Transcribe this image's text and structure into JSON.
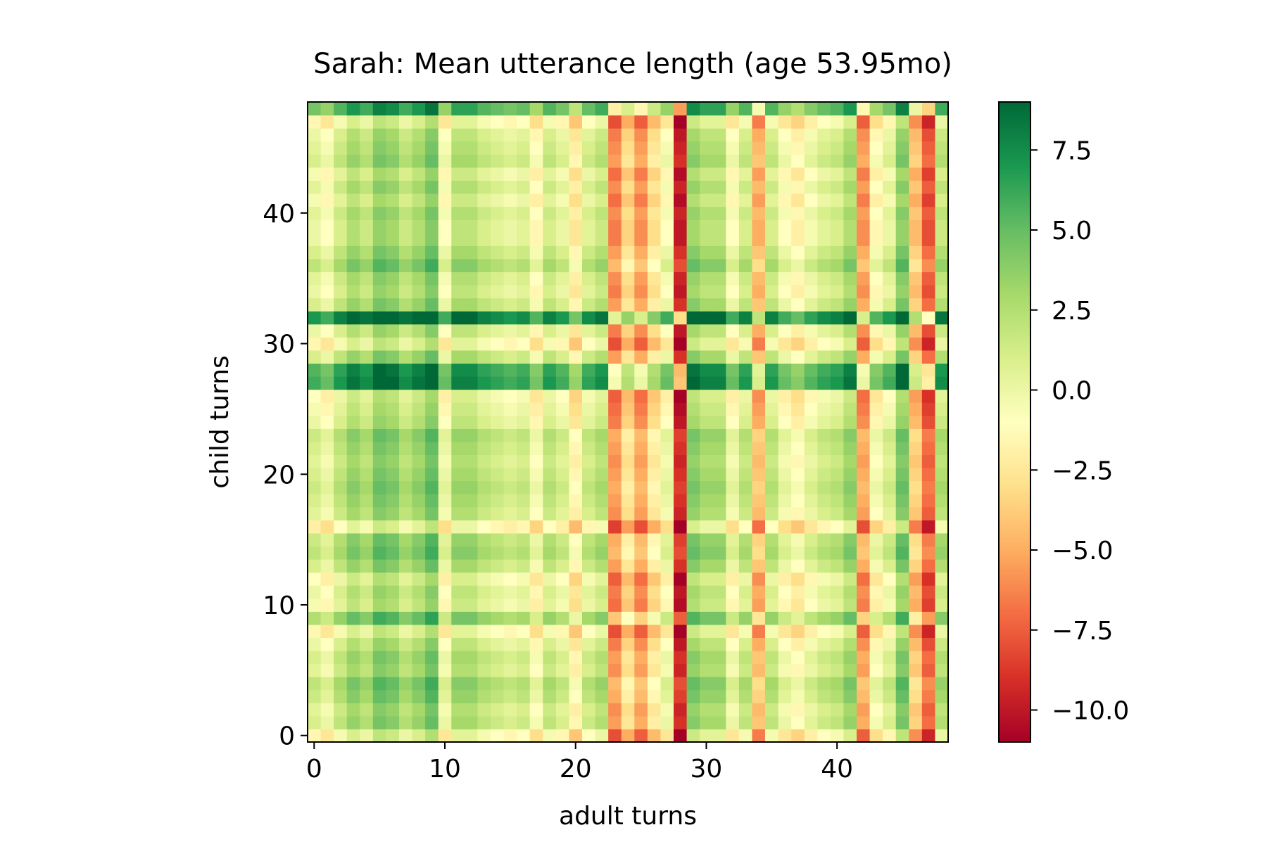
{
  "chart_data": {
    "type": "heatmap",
    "title": "Sarah: Mean utterance length (age 53.95mo)",
    "xlabel": "adult turns",
    "ylabel": "child turns",
    "n_cols": 49,
    "n_rows": 49,
    "x_range": [
      -0.5,
      48.5
    ],
    "y_range": [
      -0.5,
      48.5
    ],
    "x_ticks": [
      0,
      10,
      20,
      30,
      40
    ],
    "y_ticks": [
      0,
      10,
      20,
      30,
      40
    ],
    "colormap": "RdYlGn",
    "color_range": [
      -11,
      9
    ],
    "colorbar_ticks": [
      7.5,
      5.0,
      2.5,
      0.0,
      -2.5,
      -5.0,
      -7.5,
      -10.0
    ],
    "colorbar_tick_labels": [
      "7.5",
      "5.0",
      "2.5",
      "0.0",
      "−2.5",
      "−5.0",
      "−7.5",
      "−10.0"
    ],
    "model": "value[row][col] = col_effect[col] + row_effect[row]",
    "col_effect": [
      0.5,
      -0.5,
      1.5,
      3.0,
      2.0,
      4.0,
      3.5,
      2.0,
      3.0,
      4.5,
      -0.5,
      2.5,
      2.5,
      1.5,
      1.0,
      0.5,
      1.0,
      -1.0,
      1.5,
      0.5,
      -2.0,
      1.0,
      2.0,
      -6.0,
      -3.0,
      -5.5,
      -2.5,
      -0.5,
      -9.5,
      3.5,
      2.5,
      2.5,
      -0.5,
      1.5,
      -4.5,
      1.5,
      -0.5,
      -1.5,
      0.0,
      1.0,
      1.5,
      3.0,
      -5.5,
      -1.0,
      0.5,
      4.0,
      -4.0,
      -7.5,
      2.0
    ],
    "row_effect": [
      -2.0,
      0.5,
      0.0,
      1.0,
      1.5,
      0.0,
      0.5,
      -0.5,
      -2.0,
      2.0,
      -1.0,
      -0.5,
      -1.5,
      0.5,
      1.5,
      1.0,
      -2.5,
      0.0,
      0.5,
      1.0,
      0.5,
      0.0,
      0.5,
      1.0,
      -0.5,
      -1.0,
      -1.5,
      5.5,
      5.0,
      0.5,
      -2.0,
      -0.5,
      6.5,
      0.5,
      -0.5,
      0.0,
      1.5,
      0.5,
      -0.5,
      -0.5,
      0.0,
      -1.0,
      0.0,
      -1.0,
      0.5,
      0.0,
      -0.5,
      -2.0,
      4.0
    ]
  }
}
